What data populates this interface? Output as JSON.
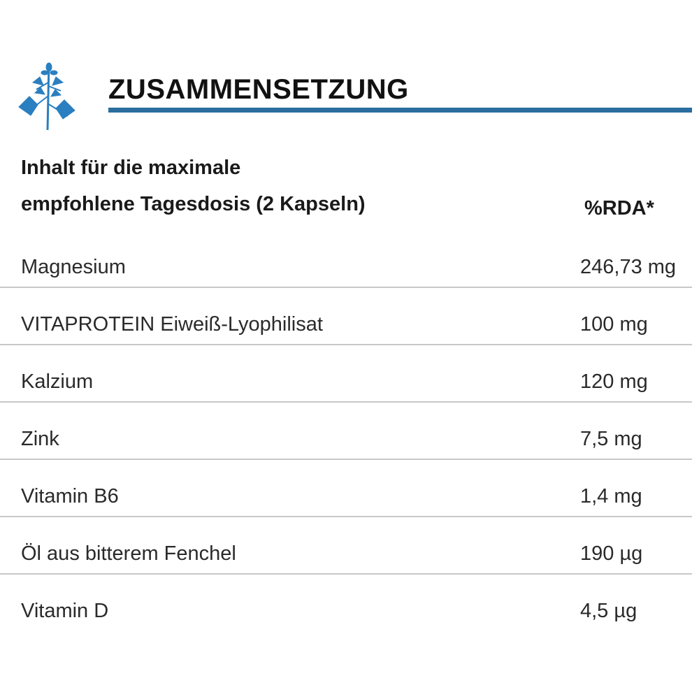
{
  "header": {
    "title": "ZUSAMMENSETZUNG",
    "icon": "plant-icon",
    "accent_color": "#2a6d9e"
  },
  "table": {
    "heading_line1": "Inhalt für die maximale",
    "heading_line2": "empfohlene Tagesdosis (2 Kapseln)",
    "rda_label": "%RDA*",
    "rows": [
      {
        "name": "Magnesium",
        "value": "246,73 mg"
      },
      {
        "name": "VITAPROTEIN Eiweiß-Lyophilisat",
        "value": "100 mg"
      },
      {
        "name": "Kalzium",
        "value": "120 mg"
      },
      {
        "name": "Zink",
        "value": "7,5 mg"
      },
      {
        "name": "Vitamin B6",
        "value": "1,4 mg"
      },
      {
        "name": "Öl aus bitterem Fenchel",
        "value": "190 µg"
      },
      {
        "name": "Vitamin D",
        "value": "4,5 µg"
      }
    ]
  }
}
